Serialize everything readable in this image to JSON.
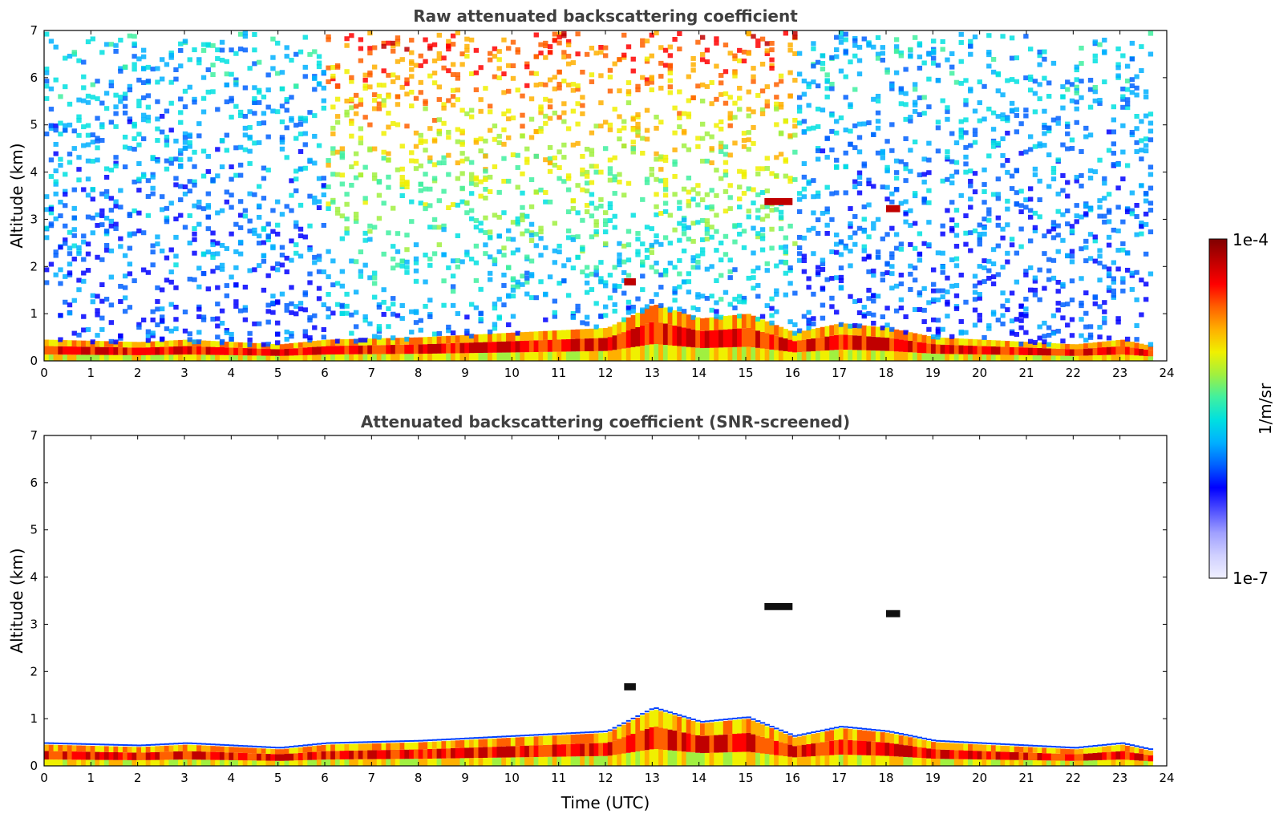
{
  "chart_data": [
    {
      "type": "heatmap",
      "title": "Raw attenuated backscattering coefficient",
      "xlabel": "",
      "ylabel": "Altitude (km)",
      "xlim": [
        0,
        24
      ],
      "ylim": [
        0,
        7
      ],
      "xticks": [
        "0",
        "1",
        "2",
        "3",
        "4",
        "5",
        "6",
        "7",
        "8",
        "9",
        "10",
        "11",
        "12",
        "13",
        "14",
        "15",
        "16",
        "17",
        "18",
        "19",
        "20",
        "21",
        "22",
        "23",
        "24"
      ],
      "yticks": [
        "0",
        "1",
        "2",
        "3",
        "4",
        "5",
        "6",
        "7"
      ],
      "data_end_time": 23.7,
      "boundary_layer_top_km": [
        [
          0,
          0.45
        ],
        [
          2,
          0.4
        ],
        [
          3,
          0.45
        ],
        [
          5,
          0.35
        ],
        [
          6,
          0.45
        ],
        [
          8,
          0.5
        ],
        [
          10,
          0.6
        ],
        [
          12,
          0.7
        ],
        [
          13,
          1.2
        ],
        [
          14,
          0.9
        ],
        [
          15,
          1.0
        ],
        [
          16,
          0.6
        ],
        [
          17,
          0.8
        ],
        [
          18,
          0.7
        ],
        [
          19,
          0.5
        ],
        [
          20,
          0.45
        ],
        [
          22,
          0.35
        ],
        [
          23,
          0.45
        ],
        [
          23.7,
          0.3
        ]
      ],
      "cloud_layers": [
        {
          "time_start": 15.4,
          "time_end": 16.0,
          "base_km": 3.3,
          "top_km": 3.45
        },
        {
          "time_start": 18.0,
          "time_end": 18.3,
          "base_km": 3.15,
          "top_km": 3.3
        },
        {
          "time_start": 12.4,
          "time_end": 12.65,
          "base_km": 1.6,
          "top_km": 1.75
        }
      ]
    },
    {
      "type": "heatmap",
      "title": "Attenuated backscattering coefficient (SNR-screened)",
      "xlabel": "Time (UTC)",
      "ylabel": "Altitude (km)",
      "xlim": [
        0,
        24
      ],
      "ylim": [
        0,
        7
      ],
      "xticks": [
        "0",
        "1",
        "2",
        "3",
        "4",
        "5",
        "6",
        "7",
        "8",
        "9",
        "10",
        "11",
        "12",
        "13",
        "14",
        "15",
        "16",
        "17",
        "18",
        "19",
        "20",
        "21",
        "22",
        "23",
        "24"
      ],
      "yticks": [
        "0",
        "1",
        "2",
        "3",
        "4",
        "5",
        "6",
        "7"
      ],
      "data_end_time": 23.7,
      "boundary_layer_top_km": [
        [
          0,
          0.45
        ],
        [
          2,
          0.4
        ],
        [
          3,
          0.45
        ],
        [
          5,
          0.35
        ],
        [
          6,
          0.45
        ],
        [
          8,
          0.5
        ],
        [
          10,
          0.6
        ],
        [
          12,
          0.7
        ],
        [
          13,
          1.2
        ],
        [
          14,
          0.9
        ],
        [
          15,
          1.0
        ],
        [
          16,
          0.6
        ],
        [
          17,
          0.8
        ],
        [
          18,
          0.7
        ],
        [
          19,
          0.5
        ],
        [
          20,
          0.45
        ],
        [
          22,
          0.35
        ],
        [
          23,
          0.45
        ],
        [
          23.7,
          0.3
        ]
      ],
      "cloud_layers": [
        {
          "time_start": 15.4,
          "time_end": 16.0,
          "base_km": 3.3,
          "top_km": 3.45
        },
        {
          "time_start": 18.0,
          "time_end": 18.3,
          "base_km": 3.15,
          "top_km": 3.3
        },
        {
          "time_start": 12.4,
          "time_end": 12.65,
          "base_km": 1.6,
          "top_km": 1.75
        }
      ]
    }
  ],
  "colorbar": {
    "label": "1/m/sr",
    "max_label": "1e-4",
    "min_label": "1e-7",
    "colors": [
      "#f0f0ff",
      "#d0d0ff",
      "#a0a0ff",
      "#5050ff",
      "#0000ff",
      "#0060ff",
      "#00b0ff",
      "#00e0e0",
      "#40f0a0",
      "#a0f040",
      "#f0f000",
      "#ffb000",
      "#ff6000",
      "#ff0000",
      "#c00000",
      "#800000"
    ]
  }
}
